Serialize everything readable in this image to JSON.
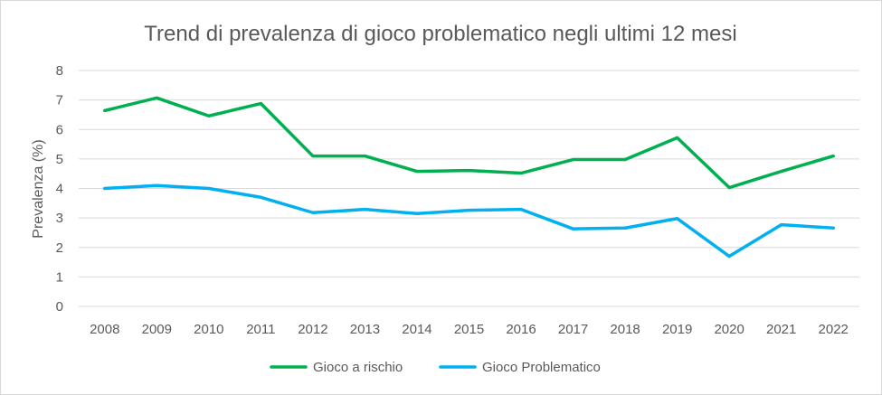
{
  "chart_data": {
    "type": "line",
    "title": "Trend di prevalenza di gioco problematico negli ultimi 12 mesi",
    "xlabel": "",
    "ylabel": "Prevalenza (%)",
    "ylim": [
      0,
      8
    ],
    "yticks": [
      "0",
      "1",
      "2",
      "3",
      "4",
      "5",
      "6",
      "7",
      "8"
    ],
    "grid": true,
    "legend_position": "bottom",
    "categories": [
      "2008",
      "2009",
      "2010",
      "2011",
      "2012",
      "2013",
      "2014",
      "2015",
      "2016",
      "2017",
      "2018",
      "2019",
      "2020",
      "2021",
      "2022"
    ],
    "series": [
      {
        "name": "Gioco a rischio",
        "color": "#00b050",
        "values": [
          6.64,
          7.07,
          6.46,
          6.88,
          5.1,
          5.1,
          4.58,
          4.61,
          4.52,
          4.98,
          4.98,
          5.72,
          4.03,
          4.58,
          5.1
        ]
      },
      {
        "name": "Gioco Problematico",
        "color": "#00b0f0",
        "values": [
          4.0,
          4.1,
          4.0,
          3.7,
          3.18,
          3.29,
          3.15,
          3.26,
          3.29,
          2.63,
          2.66,
          2.98,
          1.7,
          2.77,
          2.66
        ]
      }
    ]
  }
}
